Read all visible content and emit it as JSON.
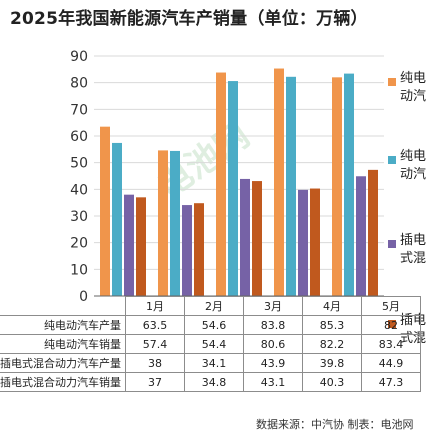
{
  "title": "2025年我国新能源汽车产销量（单位：万辆）",
  "source": "数据来源：中汽协  制表：电池网",
  "watermark": "电池网",
  "colors": {
    "series": [
      "#F0954B",
      "#4BACC6",
      "#7662A6",
      "#C0591E"
    ],
    "grid": "#d9d9d9",
    "axis": "#666666"
  },
  "chart_data": {
    "type": "bar",
    "title": "2025年我国新能源汽车产销量（单位：万辆）",
    "categories": [
      "1月",
      "2月",
      "3月",
      "4月",
      "5月"
    ],
    "ylim": [
      0,
      90
    ],
    "yticks": [
      0,
      10,
      20,
      30,
      40,
      50,
      60,
      70,
      80,
      90
    ],
    "grid": true,
    "legend_position": "right",
    "series": [
      {
        "name": "纯电动汽车产量",
        "values": [
          63.5,
          54.6,
          83.8,
          85.3,
          82
        ]
      },
      {
        "name": "纯电动汽车销量",
        "values": [
          57.4,
          54.4,
          80.6,
          82.2,
          83.4
        ]
      },
      {
        "name": "插电式混合动力汽车产量",
        "values": [
          38,
          34.1,
          43.9,
          39.8,
          44.9
        ]
      },
      {
        "name": "插电式混合动力汽车销量",
        "values": [
          37,
          34.8,
          43.1,
          40.3,
          47.3
        ]
      }
    ],
    "table": {
      "row_labels": [
        "纯电动汽车产量",
        "纯电动汽车销量",
        "插电式混合动力汽车产量",
        "插电式混合动力汽车销量"
      ],
      "rows": [
        [
          "63.5",
          "54.6",
          "83.8",
          "85.3",
          "82"
        ],
        [
          "57.4",
          "54.4",
          "80.6",
          "82.2",
          "83.4"
        ],
        [
          "38",
          "34.1",
          "43.9",
          "39.8",
          "44.9"
        ],
        [
          "37",
          "34.8",
          "43.1",
          "40.3",
          "47.3"
        ]
      ]
    }
  }
}
